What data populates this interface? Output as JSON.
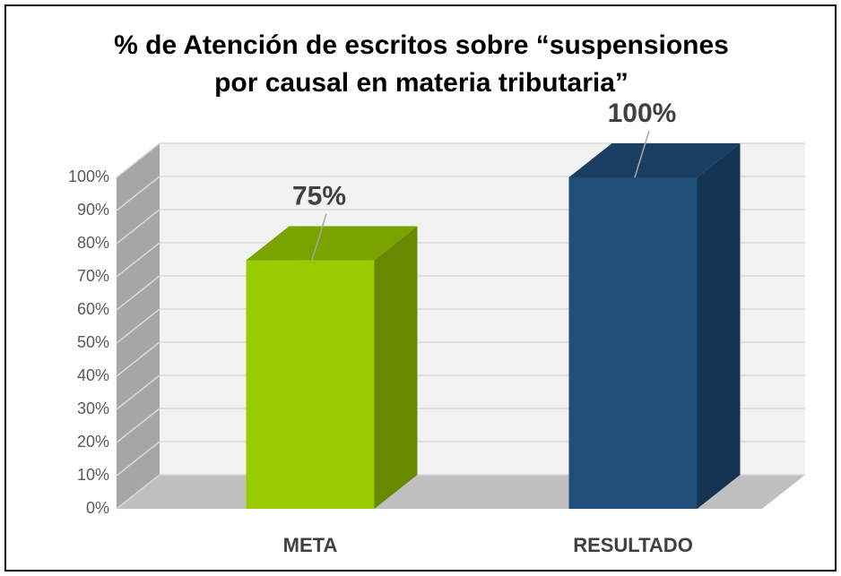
{
  "chart_data": {
    "type": "bar3d",
    "title": "% de Atención de escritos sobre “suspensiones por causal en materia tributaria”",
    "categories": [
      "META",
      "RESULTADO"
    ],
    "values": [
      75,
      100
    ],
    "value_labels": [
      "75%",
      "100%"
    ],
    "colors": [
      "#99cc00",
      "#1f4e79"
    ],
    "ylim": [
      0,
      100
    ],
    "yticks": [
      {
        "value": 0,
        "label": "0%"
      },
      {
        "value": 10,
        "label": "10%"
      },
      {
        "value": 20,
        "label": "20%"
      },
      {
        "value": 30,
        "label": "30%"
      },
      {
        "value": 40,
        "label": "40%"
      },
      {
        "value": 50,
        "label": "50%"
      },
      {
        "value": 60,
        "label": "60%"
      },
      {
        "value": 70,
        "label": "70%"
      },
      {
        "value": 80,
        "label": "80%"
      },
      {
        "value": 90,
        "label": "90%"
      },
      {
        "value": 100,
        "label": "100%"
      }
    ],
    "grid": true
  }
}
